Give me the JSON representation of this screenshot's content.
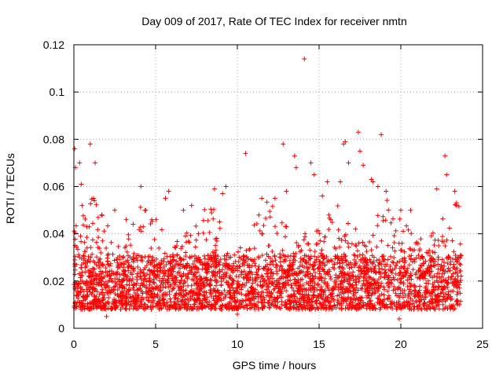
{
  "chart_data": {
    "type": "scatter",
    "title": "Day 009 of 2017, Rate Of TEC Index for receiver nmtn",
    "xlabel": "GPS time / hours",
    "ylabel": "ROTI / TECUs",
    "xlim": [
      0,
      25
    ],
    "ylim": [
      0,
      0.12
    ],
    "xticks": [
      0,
      5,
      10,
      15,
      20,
      25
    ],
    "xtick_labels": [
      "0",
      "5",
      "10",
      "15",
      "20",
      "25"
    ],
    "yticks": [
      0,
      0.02,
      0.04,
      0.06,
      0.08,
      0.1,
      0.12
    ],
    "ytick_labels": [
      "0",
      "0.02",
      "0.04",
      "0.06",
      "0.08",
      "0.1",
      "0.12"
    ],
    "grid": true,
    "marker": "+",
    "color": "#ff0000",
    "series": [
      {
        "name": "ROTI",
        "x_range": [
          0.0,
          23.7
        ],
        "typical_band": [
          0.008,
          0.035
        ],
        "points": [
          [
            0.05,
            0.076
          ],
          [
            0.1,
            0.068
          ],
          [
            0.35,
            0.07
          ],
          [
            0.45,
            0.061
          ],
          [
            0.5,
            0.052
          ],
          [
            1.0,
            0.078
          ],
          [
            1.3,
            0.07
          ],
          [
            1.2,
            0.055
          ],
          [
            1.7,
            0.048
          ],
          [
            2.5,
            0.05
          ],
          [
            4.1,
            0.06
          ],
          [
            4.4,
            0.05
          ],
          [
            5.6,
            0.055
          ],
          [
            5.8,
            0.058
          ],
          [
            7.2,
            0.052
          ],
          [
            8.6,
            0.059
          ],
          [
            9.1,
            0.057
          ],
          [
            9.3,
            0.06
          ],
          [
            10.5,
            0.074
          ],
          [
            12.8,
            0.078
          ],
          [
            12.3,
            0.055
          ],
          [
            13.0,
            0.058
          ],
          [
            13.5,
            0.073
          ],
          [
            13.6,
            0.068
          ],
          [
            14.1,
            0.114
          ],
          [
            14.5,
            0.07
          ],
          [
            14.7,
            0.065
          ],
          [
            15.5,
            0.062
          ],
          [
            16.3,
            0.062
          ],
          [
            16.5,
            0.078
          ],
          [
            16.6,
            0.079
          ],
          [
            16.8,
            0.07
          ],
          [
            17.4,
            0.083
          ],
          [
            17.5,
            0.075
          ],
          [
            17.7,
            0.069
          ],
          [
            18.2,
            0.063
          ],
          [
            18.3,
            0.062
          ],
          [
            18.6,
            0.06
          ],
          [
            18.8,
            0.082
          ],
          [
            19.1,
            0.058
          ],
          [
            20.6,
            0.05
          ],
          [
            22.2,
            0.059
          ],
          [
            22.7,
            0.073
          ],
          [
            22.8,
            0.065
          ],
          [
            23.3,
            0.058
          ],
          [
            23.4,
            0.052
          ],
          [
            20.0,
            0.05
          ],
          [
            15.2,
            0.056
          ],
          [
            11.5,
            0.055
          ],
          [
            6.7,
            0.05
          ],
          [
            3.2,
            0.046
          ],
          [
            19.9,
            0.004
          ],
          [
            2.0,
            0.005
          ],
          [
            10.0,
            0.006
          ]
        ]
      }
    ]
  }
}
